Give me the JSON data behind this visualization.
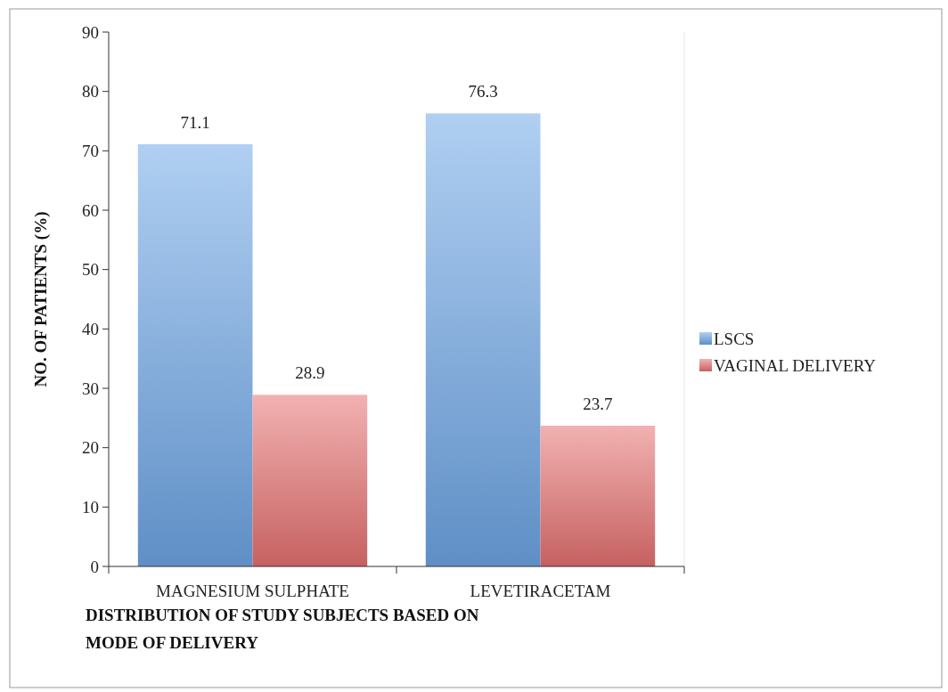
{
  "chart_data": {
    "type": "bar",
    "title": "DISTRIBUTION OF STUDY SUBJECTS BASED ON MODE OF DELIVERY",
    "ylabel": "NO. OF PATIENTS (%)",
    "categories": [
      "MAGNESIUM SULPHATE",
      "LEVETIRACETAM"
    ],
    "series": [
      {
        "name": "LSCS",
        "color": "#6fa8e8",
        "values": [
          71.1,
          76.3
        ]
      },
      {
        "name": "VAGINAL DELIVERY",
        "color": "#e87272",
        "values": [
          28.9,
          23.7
        ]
      }
    ],
    "ylim": [
      0,
      90
    ],
    "yticks": [
      0,
      10,
      20,
      30,
      40,
      50,
      60,
      70,
      80,
      90
    ],
    "data_labels": true,
    "legend": "right",
    "grid": false
  }
}
